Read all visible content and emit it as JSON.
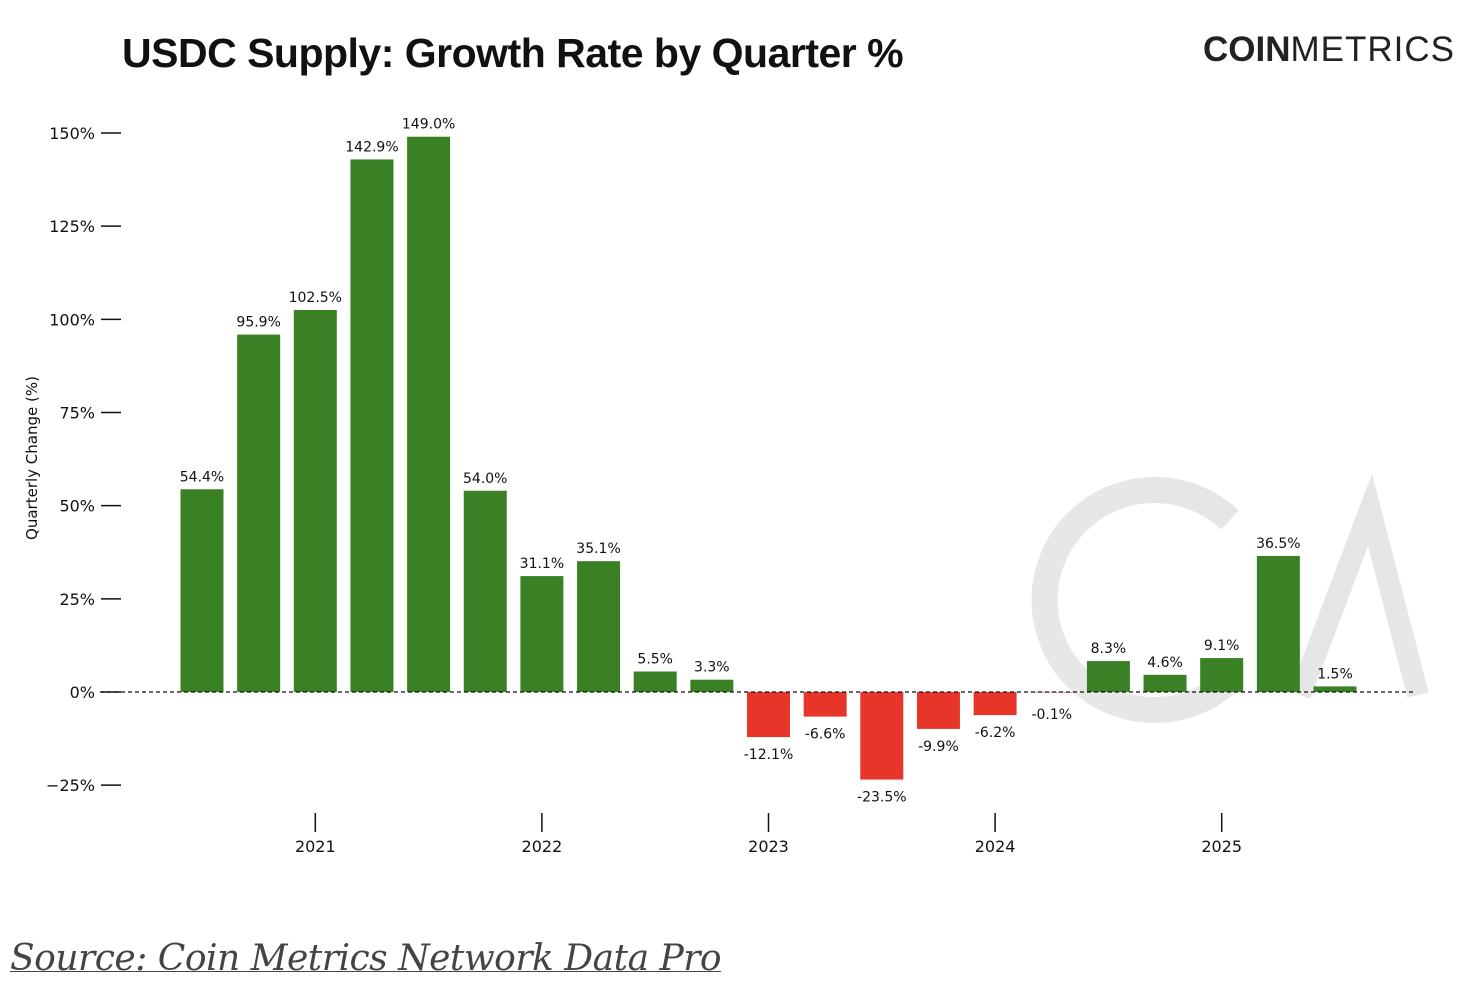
{
  "chart_data": {
    "type": "bar",
    "title": "USDC Supply: Growth Rate by Quarter %",
    "ylabel": "Quarterly Change (%)",
    "xlabel": "",
    "x": [
      "2020-Q3",
      "2020-Q4",
      "2021-Q1",
      "2021-Q2",
      "2021-Q3",
      "2021-Q4",
      "2022-Q1",
      "2022-Q2",
      "2022-Q3",
      "2022-Q4",
      "2023-Q1",
      "2023-Q2",
      "2023-Q3",
      "2023-Q4",
      "2024-Q1",
      "2024-Q2",
      "2024-Q3",
      "2024-Q4",
      "2025-Q1",
      "2025-Q2",
      "2025-Q3"
    ],
    "values": [
      54.4,
      95.9,
      102.5,
      142.9,
      149.0,
      54.0,
      31.1,
      35.1,
      5.5,
      3.3,
      -12.1,
      -6.6,
      -23.5,
      -9.9,
      -6.2,
      -0.1,
      8.3,
      4.6,
      9.1,
      36.5,
      1.5
    ],
    "data_labels": [
      "54.4%",
      "95.9%",
      "102.5%",
      "142.9%",
      "149.0%",
      "54.0%",
      "31.1%",
      "35.1%",
      "5.5%",
      "3.3%",
      "-12.1%",
      "-6.6%",
      "-23.5%",
      "-9.9%",
      "-6.2%",
      "-0.1%",
      "8.3%",
      "4.6%",
      "9.1%",
      "36.5%",
      "1.5%"
    ],
    "y_ticks": [
      -25,
      0,
      25,
      50,
      75,
      100,
      125,
      150
    ],
    "y_tick_labels": [
      "−25%",
      "0%",
      "25%",
      "50%",
      "75%",
      "100%",
      "125%",
      "150%"
    ],
    "x_tick_labels": [
      "2021",
      "2022",
      "2023",
      "2024",
      "2025"
    ],
    "ylim": [
      -30,
      155
    ],
    "grid": false,
    "zero_line": "dashed",
    "colors": {
      "positive": "#3a8024",
      "negative": "#e8352a"
    }
  },
  "logo": {
    "bold": "COIN",
    "light": "METRICS"
  },
  "source": "Source: Coin Metrics Network Data Pro"
}
